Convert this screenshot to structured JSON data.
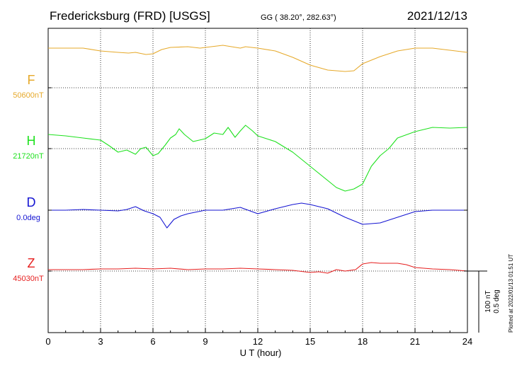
{
  "header": {
    "station": "Fredericksburg (FRD)  [USGS]",
    "coords": "GG ( 38.20°, 282.63°)",
    "date": "2021/12/13"
  },
  "footer_note": "Plotted at 2022/01/13 01:51  UT",
  "scale_bar": {
    "label1": "100 nT",
    "label2": "0.5 deg"
  },
  "chart_data": {
    "type": "line",
    "xlabel": "U T (hour)",
    "xlim": [
      0,
      24
    ],
    "xticks": [
      "0",
      "3",
      "6",
      "9",
      "12",
      "15",
      "18",
      "21",
      "24"
    ],
    "grid": true,
    "series": [
      {
        "name": "F",
        "baseline_label": "50600nT",
        "color": "#E6A92A",
        "x": [
          0,
          1,
          2,
          3,
          4,
          4.6,
          5.0,
          5.6,
          6.0,
          6.5,
          7.0,
          8.0,
          8.7,
          9.0,
          10.0,
          11.0,
          11.3,
          12.0,
          13.0,
          14.0,
          15.0,
          16.0,
          17.0,
          17.5,
          18.0,
          19.0,
          20.0,
          21.0,
          22.0,
          23.0,
          24.0
        ],
        "y": [
          56,
          56,
          56,
          52,
          50,
          49,
          50,
          47,
          48,
          54,
          57,
          58,
          56,
          57,
          60,
          56,
          58,
          56,
          52,
          43,
          32,
          25,
          23,
          24,
          34,
          44,
          52,
          56,
          56,
          53,
          50
        ]
      },
      {
        "name": "H",
        "baseline_label": "21720nT",
        "color": "#1EE11E",
        "x": [
          0,
          1,
          2,
          3,
          3.5,
          4.0,
          4.5,
          5.0,
          5.3,
          5.6,
          6.0,
          6.3,
          6.7,
          7.0,
          7.3,
          7.5,
          7.8,
          8.3,
          9.0,
          9.5,
          10.0,
          10.3,
          10.7,
          11.0,
          11.3,
          11.7,
          12.0,
          13.0,
          14.0,
          15.0,
          16.0,
          16.5,
          17.0,
          17.5,
          18.0,
          18.5,
          19.0,
          19.5,
          20.0,
          21.0,
          22.0,
          23.0,
          24.0
        ],
        "y": [
          20,
          18,
          15,
          12,
          4,
          -5,
          -2,
          -8,
          0,
          2,
          -10,
          -7,
          5,
          15,
          20,
          28,
          20,
          10,
          14,
          22,
          20,
          30,
          16,
          25,
          33,
          25,
          18,
          10,
          -5,
          -25,
          -45,
          -55,
          -60,
          -57,
          -50,
          -25,
          -10,
          0,
          15,
          24,
          30,
          29,
          30
        ]
      },
      {
        "name": "D",
        "baseline_label": "0.0deg",
        "color": "#1414D2",
        "x": [
          0,
          1,
          2,
          3,
          4,
          4.5,
          5.0,
          5.5,
          6.0,
          6.4,
          6.8,
          7.2,
          7.6,
          8.0,
          9.0,
          10.0,
          11.0,
          12.0,
          13.0,
          14.0,
          14.5,
          15.0,
          16.0,
          17.0,
          18.0,
          19.0,
          20.0,
          21.0,
          22.0,
          23.0,
          24.0
        ],
        "y": [
          0,
          0,
          1,
          0,
          -1,
          1,
          5,
          -1,
          -5,
          -10,
          -25,
          -13,
          -8,
          -5,
          0,
          0,
          4,
          -5,
          2,
          8,
          10,
          8,
          2,
          -10,
          -20,
          -18,
          -10,
          -2,
          0,
          0,
          0
        ]
      },
      {
        "name": "Z",
        "baseline_label": "45030nT",
        "color": "#E62020",
        "x": [
          0,
          2,
          3,
          4,
          5,
          6,
          7,
          8,
          9,
          10,
          11,
          12,
          13,
          14,
          15,
          15.5,
          16,
          16.5,
          17,
          17.6,
          18.0,
          18.5,
          19,
          20,
          20.5,
          21,
          22,
          23,
          24
        ],
        "y": [
          2,
          2,
          3,
          3,
          4,
          3,
          4,
          2,
          3,
          3,
          4,
          3,
          2,
          1,
          -2,
          -1,
          -3,
          2,
          0,
          2,
          10,
          12,
          11,
          11,
          9,
          5,
          3,
          2,
          0
        ]
      }
    ]
  }
}
